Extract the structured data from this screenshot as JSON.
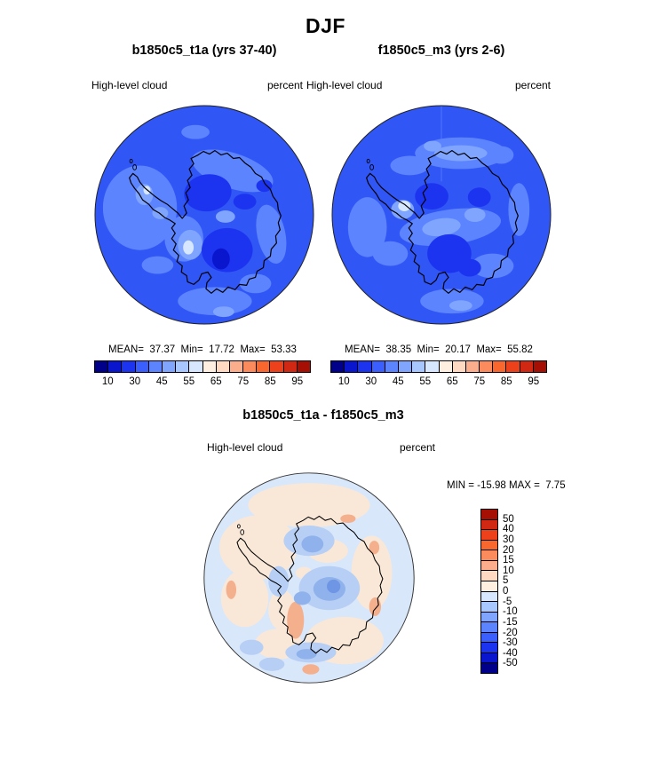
{
  "header": {
    "title": "DJF"
  },
  "panels": [
    {
      "title": "b1850c5_t1a (yrs 37-40)",
      "field": "High-level cloud",
      "units": "percent",
      "stats_text": "MEAN=  37.37  Min=  17.72  Max=  53.33"
    },
    {
      "title": "f1850c5_m3 (yrs 2-6)",
      "field": "High-level cloud",
      "units": "percent",
      "stats_text": "MEAN=  38.35  Min=  20.17  Max=  55.82"
    }
  ],
  "difference": {
    "title": "b1850c5_t1a - f1850c5_m3",
    "field": "High-level cloud",
    "units": "percent",
    "minmax_text": "MIN = -15.98 MAX =  7.75"
  },
  "colorbar": {
    "tick_labels": [
      "10",
      "30",
      "45",
      "55",
      "65",
      "75",
      "85",
      "95"
    ],
    "colors": [
      "#00008B",
      "#0A16CE",
      "#1C34F0",
      "#3B5EFF",
      "#5C84FF",
      "#7FA5FF",
      "#A8C6FF",
      "#D6E7FF",
      "#FFEFE0",
      "#FFD9C2",
      "#FCAD8C",
      "#FB8A5C",
      "#F9662E",
      "#ED411B",
      "#D02812",
      "#A50F04"
    ]
  },
  "diff_colorbar": {
    "tick_labels": [
      "50",
      "40",
      "30",
      "20",
      "15",
      "10",
      "5",
      "0",
      "-5",
      "-10",
      "-15",
      "-20",
      "-30",
      "-40",
      "-50"
    ],
    "colors": [
      "#A50F04",
      "#D02812",
      "#ED411B",
      "#F9662E",
      "#FB8A5C",
      "#FCAD8C",
      "#FFD9C2",
      "#FFEFE0",
      "#D6E7FF",
      "#A8C6FF",
      "#7FA5FF",
      "#5C84FF",
      "#3B5EFF",
      "#1C34F0",
      "#0A16CE",
      "#00008B"
    ]
  },
  "palette": {
    "map_base": "#3156F6",
    "map_light1": "#5C84FF",
    "map_light2": "#7FA5FF",
    "map_pale": "#D6E7FF",
    "map_dark1": "#1C34F0",
    "map_dark2": "#0A16CE",
    "diff_base": "#D9E7FA",
    "diff_cream": "#F9E8D8",
    "diff_salmon": "#F4AF8C",
    "diff_blue1": "#B7CFF4",
    "diff_blue2": "#8FB2EC",
    "diff_blue3": "#6E96E4",
    "coast": "#000000"
  },
  "chart_data": {
    "type": "heatmap",
    "subtype": "south-polar-stereographic-filled-contour-maps",
    "season": "DJF",
    "variable": "High-level cloud",
    "units": "percent",
    "panels": [
      {
        "name": "b1850c5_t1a (yrs 37-40)",
        "mean": 37.37,
        "min": 17.72,
        "max": 53.33
      },
      {
        "name": "f1850c5_m3 (yrs 2-6)",
        "mean": 38.35,
        "min": 20.17,
        "max": 55.82
      },
      {
        "name": "b1850c5_t1a - f1850c5_m3",
        "min": -15.98,
        "max": 7.75
      }
    ],
    "contour_levels": [
      10,
      20,
      30,
      40,
      45,
      50,
      55,
      60,
      65,
      70,
      75,
      80,
      85,
      90,
      95
    ],
    "diff_contour_levels": [
      -50,
      -40,
      -30,
      -20,
      -15,
      -10,
      -5,
      0,
      5,
      10,
      15,
      20,
      30,
      40,
      50
    ],
    "colormap": "blue-to-red diverging, 16 discrete segments",
    "legend_position": "horizontal below each top panel; vertical right of difference panel",
    "region": "Antarctica / Southern Hemisphere polar cap"
  }
}
